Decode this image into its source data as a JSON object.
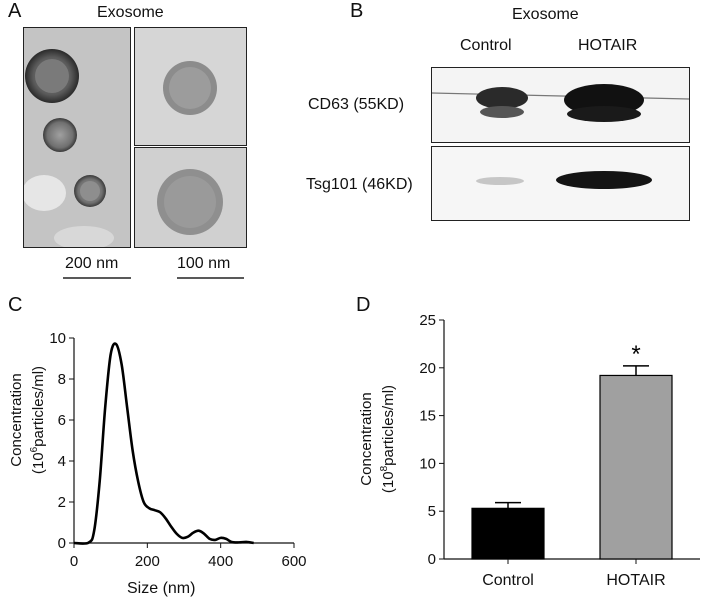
{
  "panels": {
    "a": {
      "letter": "A",
      "title": "Exosome",
      "scale_bar_1": "200 nm",
      "scale_bar_2": "100 nm"
    },
    "b": {
      "letter": "B",
      "title": "Exosome",
      "lane_labels": [
        "Control",
        "HOTAIR"
      ],
      "bands": [
        "CD63 (55KD)",
        "Tsg101 (46KD)"
      ]
    },
    "c": {
      "letter": "C"
    },
    "d": {
      "letter": "D"
    }
  },
  "chart_data": [
    {
      "type": "line",
      "panel": "C",
      "xlabel": "Size (nm)",
      "ylabel_line1": "Concentration",
      "ylabel_line2_prefix": "(10",
      "ylabel_line2_sup": "6",
      "ylabel_line2_suffix": "particles/ml)",
      "xlim": [
        0,
        600
      ],
      "ylim": [
        0,
        10
      ],
      "x_ticks": [
        0,
        200,
        400,
        600
      ],
      "y_ticks": [
        0,
        2,
        4,
        6,
        8,
        10
      ],
      "series": [
        {
          "x": [
            0,
            40,
            55,
            70,
            85,
            100,
            115,
            130,
            145,
            160,
            175,
            190,
            205,
            220,
            235,
            250,
            265,
            280,
            295,
            310,
            325,
            340,
            355,
            370,
            385,
            400,
            415,
            430,
            450,
            470,
            490
          ],
          "y": [
            0,
            0.02,
            0.6,
            3.0,
            6.6,
            9.2,
            9.7,
            8.7,
            6.6,
            4.5,
            3.0,
            2.0,
            1.7,
            1.6,
            1.5,
            1.2,
            0.8,
            0.45,
            0.25,
            0.3,
            0.5,
            0.6,
            0.45,
            0.2,
            0.15,
            0.25,
            0.2,
            0.05,
            0.03,
            0.05,
            0
          ]
        }
      ]
    },
    {
      "type": "bar",
      "panel": "D",
      "categories": [
        "Control",
        "HOTAIR"
      ],
      "values": [
        5.3,
        19.2
      ],
      "errors": [
        0.6,
        1.0
      ],
      "colors": [
        "#000000",
        "#a0a0a0"
      ],
      "annotation": "*",
      "ylabel_line1": "Concentration",
      "ylabel_line2_prefix": "(10",
      "ylabel_line2_sup": "8",
      "ylabel_line2_suffix": "particles/ml)",
      "ylim": [
        0,
        25
      ],
      "y_ticks": [
        0,
        5,
        10,
        15,
        20,
        25
      ]
    }
  ]
}
